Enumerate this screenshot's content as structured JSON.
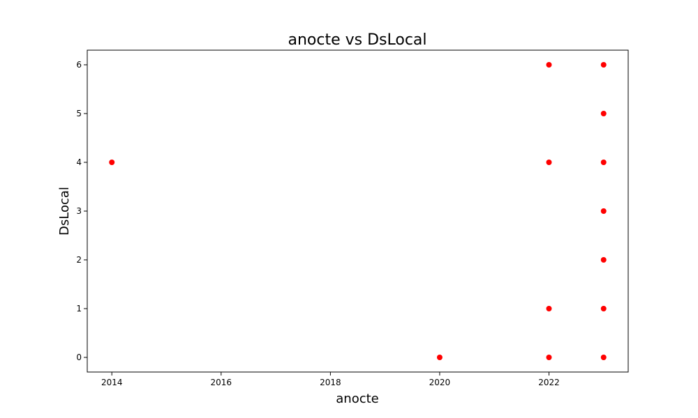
{
  "chart_data": {
    "type": "scatter",
    "title": "anocte vs DsLocal",
    "xlabel": "anocte",
    "ylabel": "DsLocal",
    "xlim": [
      2013.55,
      2023.45
    ],
    "ylim": [
      -0.3,
      6.3
    ],
    "xticks": [
      2014,
      2016,
      2018,
      2020,
      2022
    ],
    "yticks": [
      0,
      1,
      2,
      3,
      4,
      5,
      6
    ],
    "grid": false,
    "marker_color": "#ff0000",
    "points": [
      {
        "x": 2014,
        "y": 4
      },
      {
        "x": 2020,
        "y": 0
      },
      {
        "x": 2022,
        "y": 6
      },
      {
        "x": 2022,
        "y": 4
      },
      {
        "x": 2022,
        "y": 1
      },
      {
        "x": 2022,
        "y": 0
      },
      {
        "x": 2023,
        "y": 6
      },
      {
        "x": 2023,
        "y": 5
      },
      {
        "x": 2023,
        "y": 4
      },
      {
        "x": 2023,
        "y": 3
      },
      {
        "x": 2023,
        "y": 2
      },
      {
        "x": 2023,
        "y": 1
      },
      {
        "x": 2023,
        "y": 0
      }
    ]
  }
}
